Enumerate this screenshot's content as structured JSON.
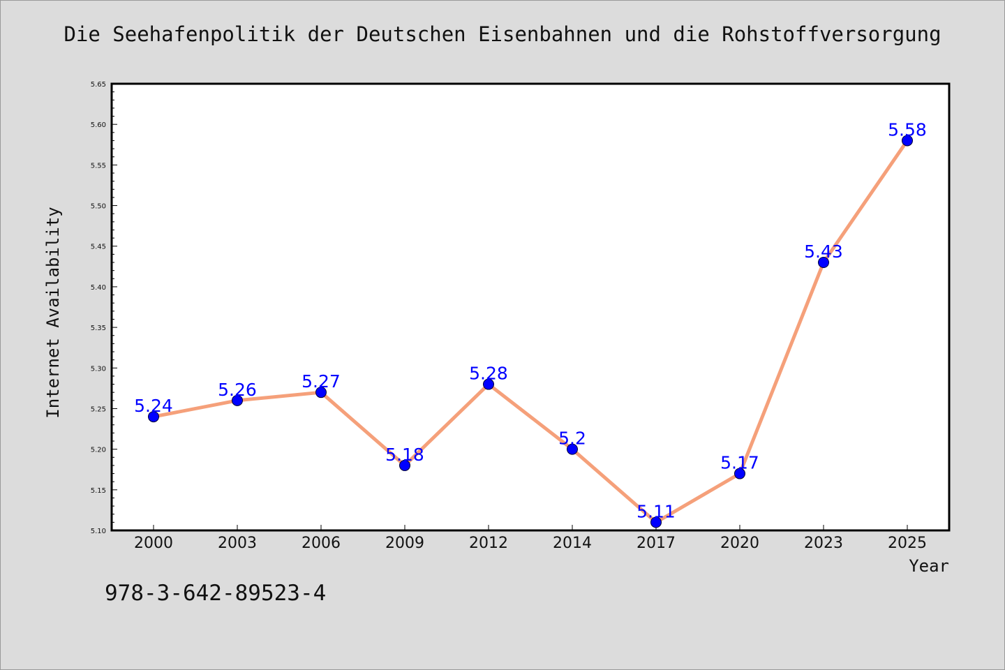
{
  "chart_data": {
    "type": "line",
    "title": "Die Seehafenpolitik der Deutschen Eisenbahnen und die Rohstoffversorgung",
    "xlabel": "Year",
    "ylabel": "Internet Availability",
    "categories": [
      "2000",
      "2003",
      "2006",
      "2009",
      "2012",
      "2014",
      "2017",
      "2020",
      "2023",
      "2025"
    ],
    "values": [
      5.24,
      5.26,
      5.27,
      5.18,
      5.28,
      5.2,
      5.11,
      5.17,
      5.43,
      5.58
    ],
    "data_labels": [
      "5.24",
      "5.26",
      "5.27",
      "5.18",
      "5.28",
      "5.2",
      "5.11",
      "5.17",
      "5.43",
      "5.58"
    ],
    "ylim": [
      5.1,
      5.65
    ],
    "yticks": [
      "5.10",
      "5.15",
      "5.20",
      "5.25",
      "5.30",
      "5.35",
      "5.40",
      "5.45",
      "5.50",
      "5.55",
      "5.60",
      "5.65"
    ],
    "grid": false,
    "legend": "none",
    "colors": {
      "line": "#f5a07a",
      "marker": "#0000ff",
      "data_label": "#0000ff",
      "plot_background": "#ffffff",
      "page_background": "#dcdcdc"
    }
  },
  "footer": {
    "isbn": "978-3-642-89523-4"
  }
}
